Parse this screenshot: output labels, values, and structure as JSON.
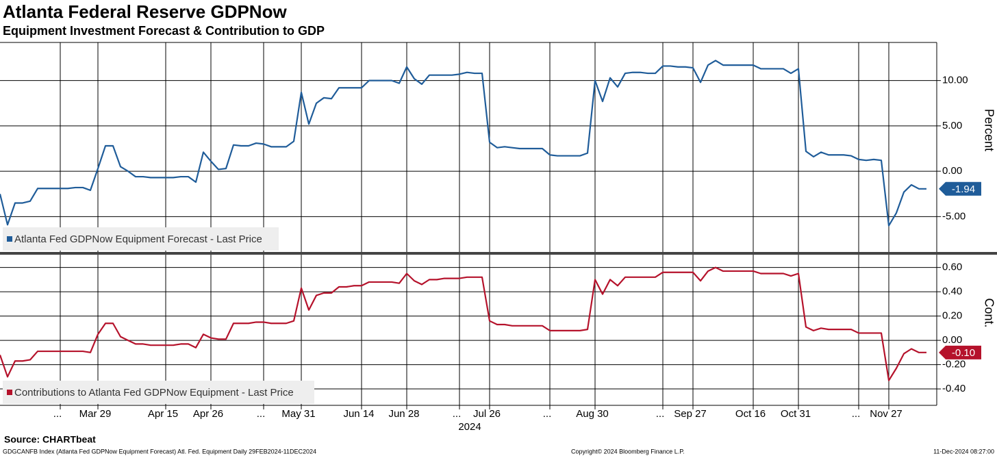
{
  "chart_data": [
    {
      "type": "line",
      "title": "Atlanta Federal Reserve GDPNow",
      "subtitle": "Equipment Investment Forecast & Contribution to GDP",
      "y_axis_label": "Percent",
      "ylim": [
        -8.9,
        14.2
      ],
      "yticks": [
        {
          "value": 10,
          "label": "10.00"
        },
        {
          "value": 5,
          "label": "5.00"
        },
        {
          "value": 0,
          "label": "0.00"
        },
        {
          "value": -5,
          "label": "-5.00"
        }
      ],
      "grid": true,
      "series": [
        {
          "name": "Atlanta Fed GDPNow Equipment Forecast - Last Price",
          "color": "#1f5c99",
          "values": [
            -2.5,
            -5.9,
            -3.5,
            -3.5,
            -3.3,
            -1.9,
            -1.9,
            -1.9,
            -1.9,
            -1.9,
            -1.8,
            -1.8,
            -2.1,
            0.3,
            2.8,
            2.8,
            0.5,
            0.0,
            -0.6,
            -0.6,
            -0.7,
            -0.7,
            -0.7,
            -0.7,
            -0.6,
            -0.6,
            -1.2,
            2.1,
            1.1,
            0.2,
            0.3,
            2.9,
            2.8,
            2.8,
            3.1,
            3.0,
            2.7,
            2.7,
            2.7,
            3.3,
            8.7,
            5.2,
            7.5,
            8.1,
            8.0,
            9.2,
            9.2,
            9.2,
            9.2,
            10.0,
            10.0,
            10.0,
            10.0,
            9.7,
            11.5,
            10.2,
            9.6,
            10.6,
            10.6,
            10.6,
            10.6,
            10.7,
            10.9,
            10.8,
            10.8,
            3.2,
            2.6,
            2.7,
            2.6,
            2.5,
            2.5,
            2.5,
            2.5,
            1.8,
            1.7,
            1.7,
            1.7,
            1.7,
            2.0,
            10.0,
            7.7,
            10.3,
            9.3,
            10.8,
            10.9,
            10.9,
            10.8,
            10.8,
            11.6,
            11.6,
            11.5,
            11.5,
            11.4,
            9.8,
            11.7,
            12.2,
            11.7,
            11.7,
            11.7,
            11.7,
            11.7,
            11.3,
            11.3,
            11.3,
            11.3,
            10.8,
            11.3,
            2.2,
            1.6,
            2.1,
            1.8,
            1.8,
            1.8,
            1.7,
            1.3,
            1.2,
            1.3,
            1.2,
            -6.0,
            -4.6,
            -2.3,
            -1.5,
            -1.94,
            -1.94
          ],
          "value_labels": [
            null,
            null,
            null,
            null,
            null,
            null,
            null,
            null,
            null,
            null,
            null,
            null,
            null,
            null,
            null,
            null,
            null,
            null,
            null,
            null,
            null,
            null,
            null,
            null,
            null,
            null,
            null,
            null,
            null,
            null,
            null,
            null,
            null,
            null,
            null,
            null,
            null,
            null,
            null,
            null,
            null,
            null,
            null,
            null,
            null,
            null,
            null,
            null,
            null,
            null,
            null,
            null,
            null,
            null,
            null,
            null,
            null,
            null,
            null,
            null,
            null,
            null,
            null,
            null,
            null,
            null,
            null,
            null,
            null,
            null,
            null,
            null,
            null,
            null,
            null,
            null,
            null,
            null,
            null,
            null,
            null,
            null,
            null,
            null,
            null,
            null,
            null,
            null,
            null,
            null,
            null,
            null,
            null,
            null,
            null,
            null,
            null,
            null,
            null,
            null,
            null,
            null,
            null,
            null,
            null,
            null,
            null,
            null,
            null,
            null,
            null,
            null,
            null,
            null,
            null,
            null,
            null,
            null,
            null,
            null,
            null,
            null,
            null,
            "-1.94"
          ]
        }
      ]
    },
    {
      "type": "line",
      "y_axis_label": "Cont.",
      "x_axis_year": "2024",
      "categories": [
        null,
        null,
        null,
        null,
        null,
        null,
        null,
        null,
        "...",
        null,
        null,
        null,
        null,
        "Mar 29",
        null,
        null,
        null,
        null,
        null,
        null,
        null,
        null,
        "Apr 15",
        null,
        null,
        null,
        null,
        null,
        "Apr 26",
        null,
        null,
        null,
        null,
        null,
        null,
        "...",
        null,
        null,
        null,
        null,
        "May 31",
        null,
        null,
        null,
        null,
        null,
        null,
        null,
        "Jun 14",
        null,
        null,
        null,
        null,
        null,
        "Jun 28",
        null,
        null,
        null,
        null,
        null,
        null,
        "...",
        null,
        null,
        null,
        "Jul 26",
        null,
        null,
        null,
        null,
        null,
        null,
        null,
        "...",
        null,
        null,
        null,
        null,
        null,
        "Aug 30",
        null,
        null,
        null,
        null,
        null,
        null,
        null,
        null,
        "...",
        null,
        null,
        null,
        "Sep 27",
        null,
        null,
        null,
        null,
        null,
        null,
        null,
        "Oct 16",
        null,
        null,
        null,
        null,
        null,
        "Oct 31",
        null,
        null,
        null,
        null,
        null,
        null,
        null,
        "...",
        null,
        null,
        null,
        "Nov 27",
        null,
        null,
        null,
        null,
        null
      ],
      "ylim": [
        -0.535,
        0.705
      ],
      "yticks": [
        {
          "value": 0.6,
          "label": "0.60"
        },
        {
          "value": 0.4,
          "label": "0.40"
        },
        {
          "value": 0.2,
          "label": "0.20"
        },
        {
          "value": 0,
          "label": "0.00"
        },
        {
          "value": -0.2,
          "label": "-0.20"
        },
        {
          "value": -0.4,
          "label": "-0.40"
        }
      ],
      "grid": true,
      "series": [
        {
          "name": "Contributions to Atlanta Fed GDPNow Equipment - Last Price",
          "color": "#b5122b",
          "values": [
            -0.12,
            -0.3,
            -0.17,
            -0.17,
            -0.16,
            -0.09,
            -0.09,
            -0.09,
            -0.09,
            -0.09,
            -0.09,
            -0.09,
            -0.1,
            0.05,
            0.14,
            0.14,
            0.03,
            0.0,
            -0.03,
            -0.03,
            -0.04,
            -0.04,
            -0.04,
            -0.04,
            -0.03,
            -0.03,
            -0.06,
            0.05,
            0.02,
            0.01,
            0.01,
            0.14,
            0.14,
            0.14,
            0.15,
            0.15,
            0.14,
            0.14,
            0.14,
            0.16,
            0.43,
            0.25,
            0.37,
            0.39,
            0.39,
            0.44,
            0.44,
            0.45,
            0.45,
            0.48,
            0.48,
            0.48,
            0.48,
            0.47,
            0.55,
            0.49,
            0.46,
            0.5,
            0.5,
            0.51,
            0.51,
            0.51,
            0.52,
            0.52,
            0.52,
            0.16,
            0.13,
            0.13,
            0.12,
            0.12,
            0.12,
            0.12,
            0.12,
            0.08,
            0.08,
            0.08,
            0.08,
            0.08,
            0.09,
            0.5,
            0.38,
            0.5,
            0.45,
            0.52,
            0.52,
            0.52,
            0.52,
            0.52,
            0.56,
            0.56,
            0.56,
            0.56,
            0.56,
            0.49,
            0.57,
            0.6,
            0.57,
            0.57,
            0.57,
            0.57,
            0.57,
            0.55,
            0.55,
            0.55,
            0.55,
            0.53,
            0.55,
            0.11,
            0.08,
            0.1,
            0.09,
            0.09,
            0.09,
            0.09,
            0.06,
            0.06,
            0.06,
            0.06,
            -0.33,
            -0.23,
            -0.11,
            -0.07,
            -0.1,
            -0.1
          ],
          "value_labels": [
            null,
            null,
            null,
            null,
            null,
            null,
            null,
            null,
            null,
            null,
            null,
            null,
            null,
            null,
            null,
            null,
            null,
            null,
            null,
            null,
            null,
            null,
            null,
            null,
            null,
            null,
            null,
            null,
            null,
            null,
            null,
            null,
            null,
            null,
            null,
            null,
            null,
            null,
            null,
            null,
            null,
            null,
            null,
            null,
            null,
            null,
            null,
            null,
            null,
            null,
            null,
            null,
            null,
            null,
            null,
            null,
            null,
            null,
            null,
            null,
            null,
            null,
            null,
            null,
            null,
            null,
            null,
            null,
            null,
            null,
            null,
            null,
            null,
            null,
            null,
            null,
            null,
            null,
            null,
            null,
            null,
            null,
            null,
            null,
            null,
            null,
            null,
            null,
            null,
            null,
            null,
            null,
            null,
            null,
            null,
            null,
            null,
            null,
            null,
            null,
            null,
            null,
            null,
            null,
            null,
            null,
            null,
            null,
            null,
            null,
            null,
            null,
            null,
            null,
            null,
            null,
            null,
            null,
            null,
            null,
            null,
            null,
            null,
            "-0.10"
          ]
        }
      ]
    }
  ],
  "source": "Source: CHARTbeat",
  "footer": {
    "description": "GDGCANFB Index (Atlanta Fed GDPNow Equipment Forecast) Atl. Fed. Equipment  Daily 29FEB2024-11DEC2024",
    "copyright": "Copyright© 2024 Bloomberg Finance L.P.",
    "timestamp": "11-Dec-2024 08:27:00"
  }
}
